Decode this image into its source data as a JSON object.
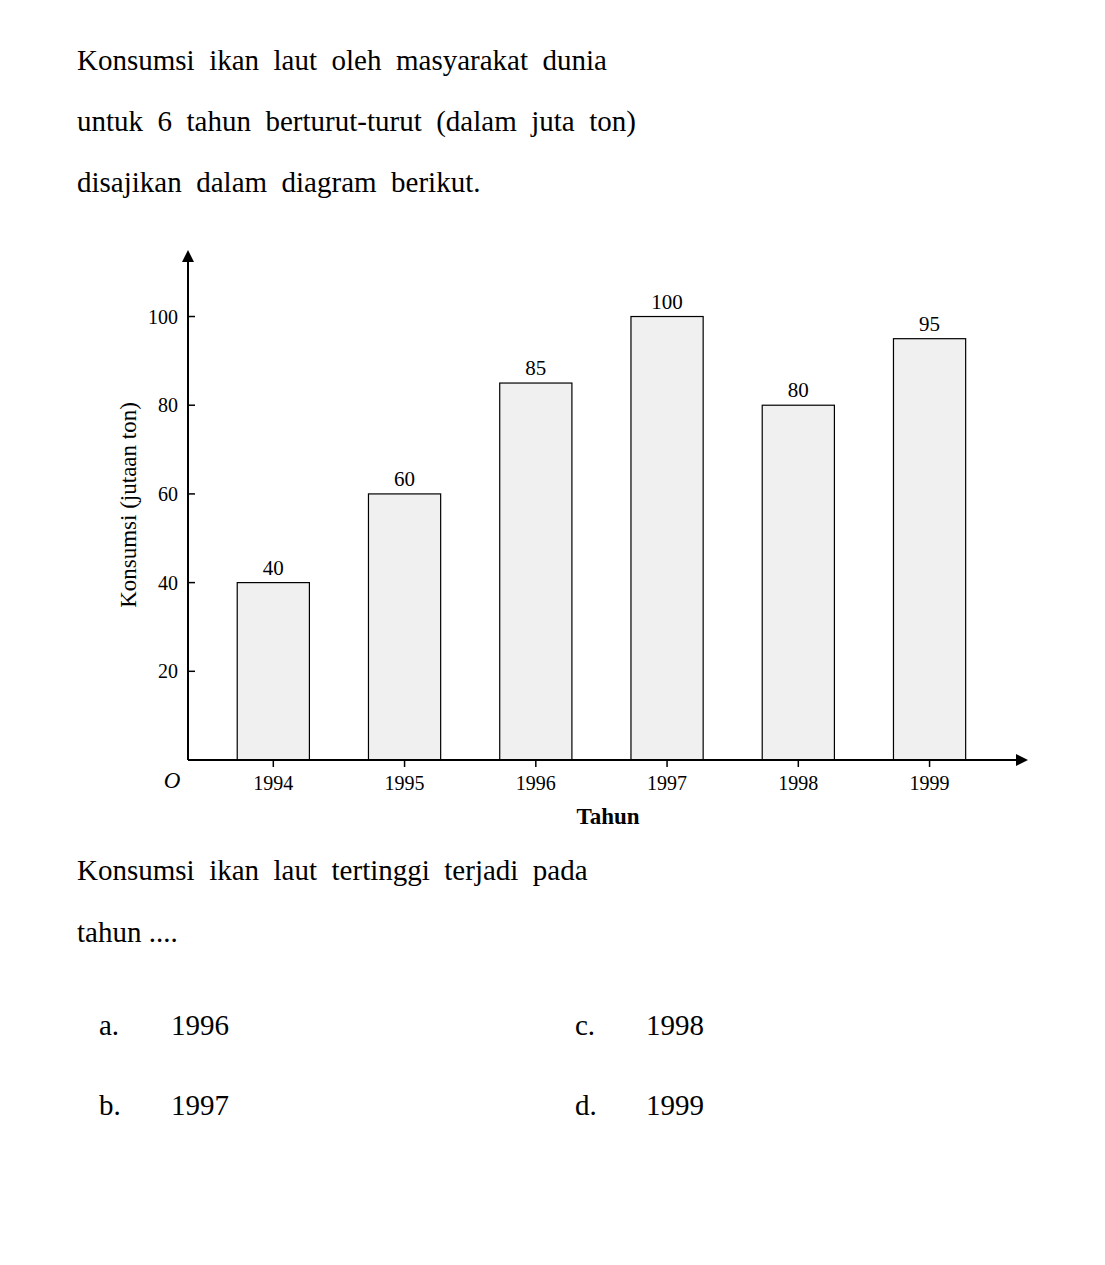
{
  "chart_data": {
    "type": "bar",
    "title": [
      "Konsumsi  ikan  laut  oleh  masyarakat  dunia",
      "untuk  6  tahun  berturut-turut  (dalam  juta  ton)",
      "disajikan  dalam  diagram  berikut."
    ],
    "categories": [
      "1994",
      "1995",
      "1996",
      "1997",
      "1998",
      "1999"
    ],
    "values": [
      40,
      60,
      85,
      100,
      80,
      95
    ],
    "color": "#f0f0f0",
    "ylabel": "Konsumsi (jutaan ton)",
    "xlabel": "Tahun",
    "ylim": [
      0,
      115
    ],
    "yticks": [
      20,
      40,
      60,
      80,
      100
    ],
    "grid": false,
    "data_labels": true,
    "annotations": [
      "O"
    ],
    "question": [
      "Konsumsi  ikan  laut  tertinggi  terjadi  pada",
      "tahun ...."
    ],
    "choices": [
      {
        "label": "a.",
        "text": "1996"
      },
      {
        "label": "b.",
        "text": "1997"
      },
      {
        "label": "c.",
        "text": "1998"
      },
      {
        "label": "d.",
        "text": "1999"
      }
    ]
  }
}
